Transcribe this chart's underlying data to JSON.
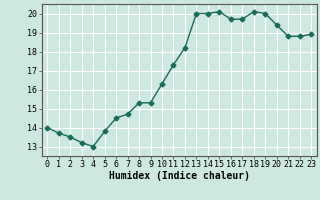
{
  "x": [
    0,
    1,
    2,
    3,
    4,
    5,
    6,
    7,
    8,
    9,
    10,
    11,
    12,
    13,
    14,
    15,
    16,
    17,
    18,
    19,
    20,
    21,
    22,
    23
  ],
  "y": [
    14.0,
    13.7,
    13.5,
    13.2,
    13.0,
    13.8,
    14.5,
    14.7,
    15.3,
    15.3,
    16.3,
    17.3,
    18.2,
    20.0,
    20.0,
    20.1,
    19.7,
    19.7,
    20.1,
    20.0,
    19.4,
    18.8,
    18.8,
    18.9
  ],
  "xlabel": "Humidex (Indice chaleur)",
  "line_color": "#1a6b5a",
  "bg_color": "#cce8e0",
  "grid_color": "#ffffff",
  "ylim": [
    12.5,
    20.5
  ],
  "xlim": [
    -0.5,
    23.5
  ],
  "yticks": [
    13,
    14,
    15,
    16,
    17,
    18,
    19,
    20
  ],
  "xticks": [
    0,
    1,
    2,
    3,
    4,
    5,
    6,
    7,
    8,
    9,
    10,
    11,
    12,
    13,
    14,
    15,
    16,
    17,
    18,
    19,
    20,
    21,
    22,
    23
  ],
  "marker": "D",
  "marker_size": 2.5,
  "line_width": 1.0,
  "xlabel_fontsize": 7,
  "tick_fontsize": 6
}
